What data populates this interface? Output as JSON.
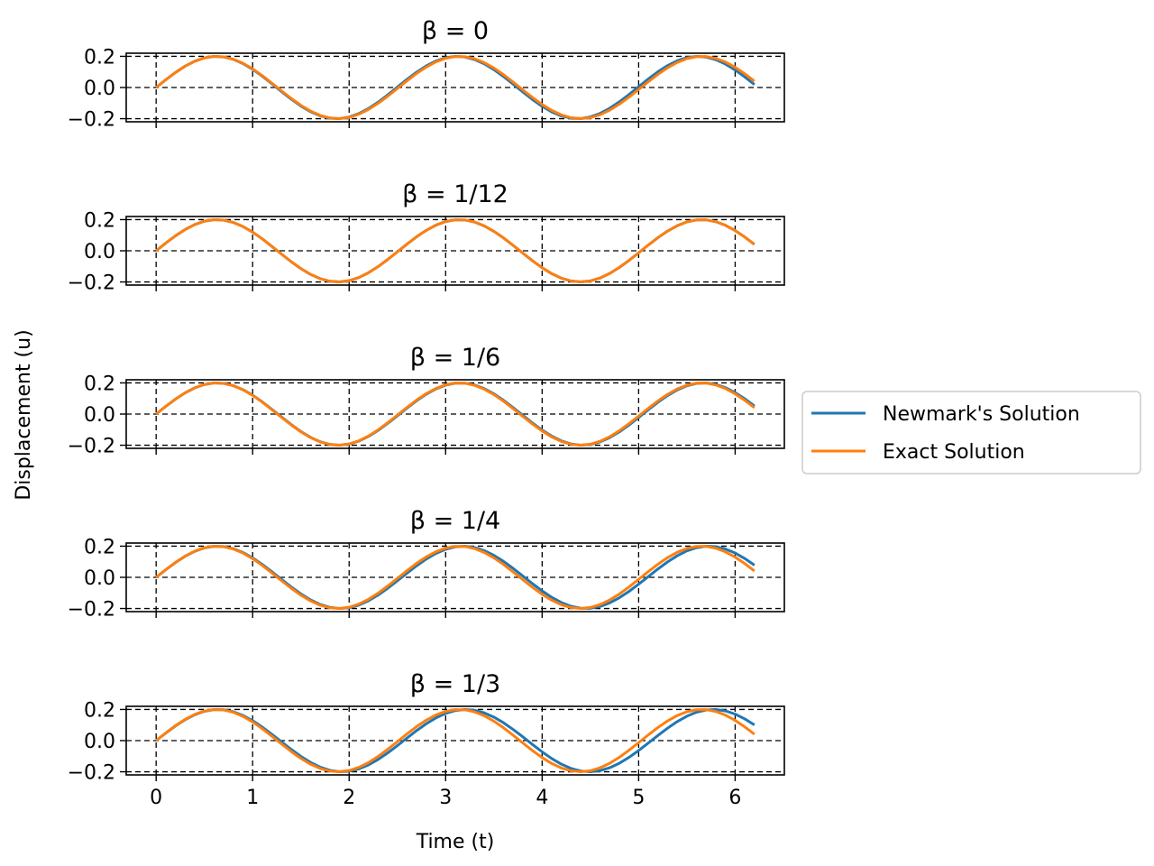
{
  "chart_data": {
    "type": "line",
    "xlabel": "Time (t)",
    "ylabel": "Displacement (u)",
    "xlim": [
      -0.31,
      6.51
    ],
    "ylim": [
      -0.22,
      0.22
    ],
    "xticks": [
      0,
      1,
      2,
      3,
      4,
      5,
      6
    ],
    "xtick_labels": [
      "0",
      "1",
      "2",
      "3",
      "4",
      "5",
      "6"
    ],
    "yticks": [
      0.2,
      0.0,
      -0.2
    ],
    "ytick_labels": [
      "0.2",
      "0.0",
      "−0.2"
    ],
    "grid": true,
    "legend_position": "center-right",
    "series_styles": [
      {
        "name": "Newmark's Solution",
        "color": "#1f77b4"
      },
      {
        "name": "Exact Solution",
        "color": "#ff7f0e"
      }
    ],
    "x_range": [
      0,
      6.2
    ],
    "n_points": 63,
    "amplitude": 0.2,
    "exact_period": 2.513,
    "panels": [
      {
        "title": "β = 0",
        "beta": "0",
        "newmark_period": 2.495
      },
      {
        "title": "β = 1/12",
        "beta": "1/12",
        "newmark_period": 2.513
      },
      {
        "title": "β = 1/6",
        "beta": "1/6",
        "newmark_period": 2.522
      },
      {
        "title": "β = 1/4",
        "beta": "1/4",
        "newmark_period": 2.545
      },
      {
        "title": "β = 1/3",
        "beta": "1/3",
        "newmark_period": 2.566
      }
    ]
  }
}
